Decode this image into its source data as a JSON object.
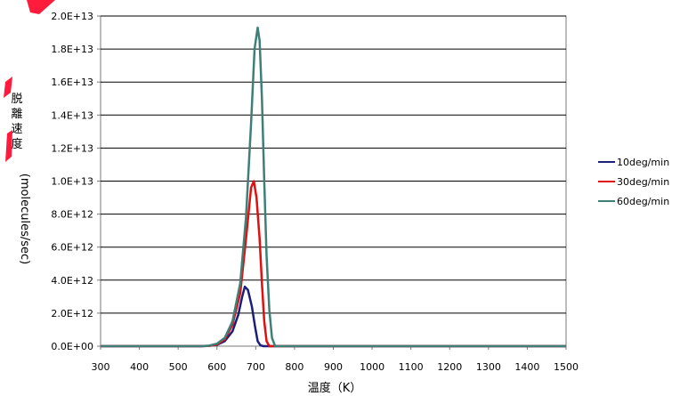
{
  "chart_data": {
    "type": "line",
    "xlabel": "温度（K）",
    "ylabel": "脱離速度(molecules/sec)",
    "ylabel_parts": [
      "脱",
      "離",
      "速",
      "度",
      "(molecules/sec)"
    ],
    "xlim": [
      300,
      1500
    ],
    "ylim": [
      0,
      20000000000000.0
    ],
    "x_ticks": [
      "300",
      "400",
      "500",
      "600",
      "700",
      "800",
      "900",
      "1000",
      "1100",
      "1200",
      "1300",
      "1400",
      "1500"
    ],
    "y_ticks": [
      "0.0E+00",
      "2.0E+12",
      "4.0E+12",
      "6.0E+12",
      "8.0E+12",
      "1.0E+13",
      "1.2E+13",
      "1.4E+13",
      "1.6E+13",
      "1.8E+13",
      "2.0E+13"
    ],
    "grid": "horizontal",
    "legend": "right",
    "series": [
      {
        "name": "10deg/min",
        "color": "#1a1f7a",
        "x": [
          300,
          560,
          580,
          600,
          620,
          640,
          655,
          665,
          672,
          680,
          690,
          698,
          705,
          712,
          720,
          1500
        ],
        "y": [
          0,
          0,
          20000000000.0,
          80000000000.0,
          300000000000.0,
          900000000000.0,
          1900000000000.0,
          3000000000000.0,
          3600000000000.0,
          3400000000000.0,
          2400000000000.0,
          1200000000000.0,
          300000000000.0,
          50000000000.0,
          0,
          0
        ]
      },
      {
        "name": "30deg/min",
        "color": "#e01010",
        "x": [
          300,
          560,
          580,
          600,
          620,
          640,
          660,
          675,
          688,
          695,
          702,
          710,
          716,
          722,
          728,
          735,
          1500
        ],
        "y": [
          0,
          0,
          20000000000.0,
          100000000000.0,
          400000000000.0,
          1300000000000.0,
          3200000000000.0,
          6500000000000.0,
          9600000000000.0,
          10000000000000.0,
          9000000000000.0,
          6500000000000.0,
          3800000000000.0,
          1500000000000.0,
          300000000000.0,
          0,
          0
        ]
      },
      {
        "name": "60deg/min",
        "color": "#3f7f78",
        "x": [
          300,
          560,
          580,
          600,
          620,
          640,
          660,
          675,
          688,
          697,
          705,
          710,
          716,
          722,
          728,
          735,
          742,
          750,
          1500
        ],
        "y": [
          0,
          0,
          30000000000.0,
          150000000000.0,
          500000000000.0,
          1500000000000.0,
          3800000000000.0,
          7800000000000.0,
          13500000000000.0,
          18000000000000.0,
          19300000000000.0,
          18500000000000.0,
          15000000000000.0,
          10000000000000.0,
          5500000000000.0,
          2200000000000.0,
          500000000000.0,
          0,
          0
        ]
      }
    ]
  },
  "decoration": {
    "corner_mark_color": "#ff1b3c"
  }
}
